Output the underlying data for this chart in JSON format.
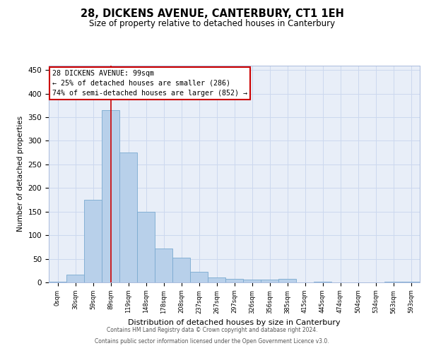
{
  "title": "28, DICKENS AVENUE, CANTERBURY, CT1 1EH",
  "subtitle": "Size of property relative to detached houses in Canterbury",
  "xlabel": "Distribution of detached houses by size in Canterbury",
  "ylabel": "Number of detached properties",
  "categories": [
    "0sqm",
    "30sqm",
    "59sqm",
    "89sqm",
    "119sqm",
    "148sqm",
    "178sqm",
    "208sqm",
    "237sqm",
    "267sqm",
    "297sqm",
    "326sqm",
    "356sqm",
    "385sqm",
    "415sqm",
    "445sqm",
    "474sqm",
    "504sqm",
    "534sqm",
    "563sqm",
    "593sqm"
  ],
  "values": [
    2,
    17,
    175,
    365,
    275,
    150,
    72,
    53,
    23,
    10,
    7,
    6,
    6,
    7,
    0,
    2,
    0,
    0,
    0,
    1,
    1
  ],
  "bar_color": "#b8d0ea",
  "bar_edge_color": "#7aaad0",
  "grid_color": "#ccd8ee",
  "bg_color": "#e8eef8",
  "red_line_x": 3.5,
  "annotation_text": "28 DICKENS AVENUE: 99sqm\n← 25% of detached houses are smaller (286)\n74% of semi-detached houses are larger (852) →",
  "annotation_box_color": "#ffffff",
  "annotation_edge_color": "#cc0000",
  "footer_line1": "Contains HM Land Registry data © Crown copyright and database right 2024.",
  "footer_line2": "Contains public sector information licensed under the Open Government Licence v3.0.",
  "ylim": [
    0,
    460
  ],
  "yticks": [
    0,
    50,
    100,
    150,
    200,
    250,
    300,
    350,
    400,
    450
  ]
}
